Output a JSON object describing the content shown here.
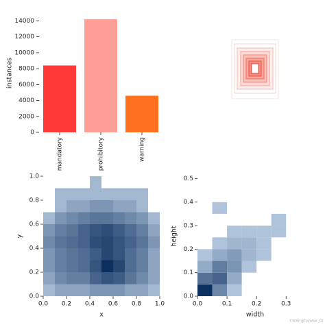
{
  "chart_data": [
    {
      "type": "bar",
      "ylabel": "instances",
      "categories": [
        "mandatory",
        "prohibitory",
        "warning"
      ],
      "values": [
        8400,
        14200,
        4600
      ],
      "colors": [
        "#ff3838",
        "#ff9d97",
        "#ff701f"
      ],
      "ylim": [
        0,
        14900
      ],
      "yticks": [
        0,
        2000,
        4000,
        6000,
        8000,
        10000,
        12000,
        14000
      ]
    },
    {
      "type": "hist2d",
      "xlabel": "x",
      "ylabel": "y",
      "x_bins": [
        0,
        0.1,
        0.2,
        0.3,
        0.4,
        0.5,
        0.6,
        0.7,
        0.8,
        0.9,
        1
      ],
      "y_bins": [
        0,
        0.1,
        0.2,
        0.3,
        0.4,
        0.5,
        0.6,
        0.7,
        0.8,
        0.9,
        1
      ],
      "counts": [
        [
          1,
          2,
          2,
          2,
          3,
          3,
          3,
          2,
          2,
          1
        ],
        [
          2,
          4,
          5,
          5,
          8,
          10,
          9,
          6,
          4,
          2
        ],
        [
          3,
          5,
          6,
          7,
          10,
          16,
          12,
          7,
          5,
          2
        ],
        [
          3,
          5,
          6,
          7,
          9,
          12,
          10,
          7,
          5,
          2
        ],
        [
          4,
          6,
          7,
          8,
          11,
          12,
          10,
          8,
          6,
          3
        ],
        [
          3,
          5,
          6,
          8,
          10,
          11,
          9,
          7,
          5,
          2
        ],
        [
          1,
          3,
          4,
          5,
          6,
          6,
          5,
          4,
          3,
          1
        ],
        [
          0,
          1,
          2,
          2,
          3,
          3,
          2,
          2,
          1,
          0
        ],
        [
          0,
          1,
          1,
          1,
          1,
          1,
          1,
          1,
          1,
          0
        ],
        [
          0,
          0,
          0,
          0,
          1,
          0,
          0,
          0,
          0,
          0
        ]
      ],
      "color_range": [
        "#d4e5f7",
        "#0b2f5e"
      ],
      "xlim": [
        0,
        1
      ],
      "ylim": [
        0,
        1
      ],
      "xticks": [
        {
          "value": 0,
          "label": "0.0"
        },
        {
          "value": 0.2,
          "label": "0.2"
        },
        {
          "value": 0.4,
          "label": "0.4"
        },
        {
          "value": 0.6,
          "label": "0.6"
        },
        {
          "value": 0.8,
          "label": "0.8"
        },
        {
          "value": 1,
          "label": "1.0"
        }
      ],
      "yticks": [
        {
          "value": 0,
          "label": "0.0"
        },
        {
          "value": 0.2,
          "label": "0.2"
        },
        {
          "value": 0.4,
          "label": "0.4"
        },
        {
          "value": 0.6,
          "label": "0.6"
        },
        {
          "value": 0.8,
          "label": "0.8"
        },
        {
          "value": 1,
          "label": "1.0"
        }
      ]
    },
    {
      "type": "hist2d",
      "xlabel": "width",
      "ylabel": "height",
      "x_bins": [
        0,
        0.05,
        0.1,
        0.15,
        0.2,
        0.25,
        0.3,
        0.35
      ],
      "y_bins": [
        0,
        0.05,
        0.1,
        0.15,
        0.2,
        0.25,
        0.3,
        0.35,
        0.4,
        0.45,
        0.5
      ],
      "counts": [
        [
          30,
          8,
          1,
          0,
          0,
          0,
          0
        ],
        [
          12,
          15,
          3,
          0,
          0,
          0,
          0
        ],
        [
          3,
          10,
          6,
          1,
          0,
          0,
          0
        ],
        [
          1,
          3,
          5,
          2,
          1,
          0,
          0
        ],
        [
          0,
          1,
          2,
          2,
          1,
          0,
          0
        ],
        [
          0,
          0,
          1,
          1,
          1,
          1,
          0
        ],
        [
          0,
          0,
          0,
          0,
          0,
          1,
          0
        ],
        [
          0,
          1,
          0,
          0,
          0,
          0,
          0
        ],
        [
          0,
          0,
          0,
          0,
          0,
          0,
          0
        ],
        [
          0,
          0,
          0,
          0,
          0,
          0,
          0
        ]
      ],
      "color_range": [
        "#d4e5f7",
        "#0b2f5e"
      ],
      "xlim": [
        0,
        0.39
      ],
      "ylim": [
        0,
        0.51
      ],
      "xticks": [
        {
          "value": 0,
          "label": "0.0"
        },
        {
          "value": 0.1,
          "label": "0.1"
        },
        {
          "value": 0.2,
          "label": "0.2"
        },
        {
          "value": 0.3,
          "label": "0.3"
        }
      ],
      "yticks": [
        {
          "value": 0,
          "label": "0.0"
        },
        {
          "value": 0.1,
          "label": "0.1"
        },
        {
          "value": 0.2,
          "label": "0.2"
        },
        {
          "value": 0.3,
          "label": "0.3"
        },
        {
          "value": 0.4,
          "label": "0.4"
        },
        {
          "value": 0.5,
          "label": "0.5"
        }
      ]
    }
  ],
  "watermark": "CSDN @Tuyohar_02"
}
